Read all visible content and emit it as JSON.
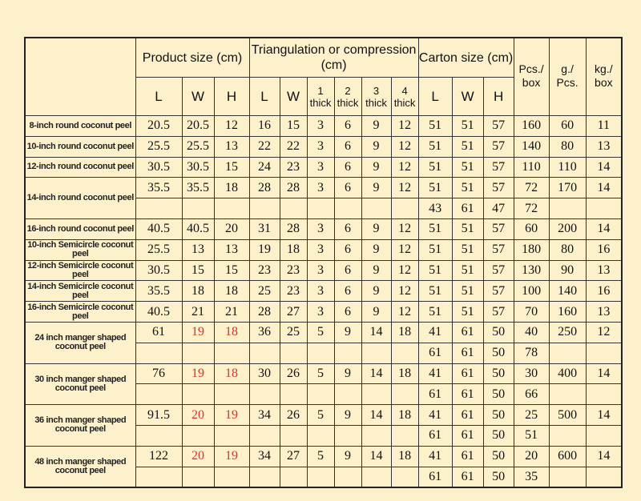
{
  "header": {
    "product": "Product size (cm)",
    "triangulation": "Triangulation or compression (cm)",
    "carton": "Carton size (cm)",
    "pcs": "Pcs./ box",
    "grams": "g./ Pcs.",
    "kg": "kg./ box",
    "sub": [
      "L",
      "W",
      "H",
      "L",
      "W",
      "1 thick",
      "2 thick",
      "3 thick",
      "4 thick",
      "L",
      "W",
      "H"
    ]
  },
  "rows": [
    {
      "name": "8-inch round coconut peel",
      "values": [
        20.5,
        20.5,
        12,
        16,
        15,
        3,
        6,
        9,
        12,
        51,
        51,
        57,
        160,
        60,
        11
      ]
    },
    {
      "name": "10-inch round coconut peel",
      "values": [
        25.5,
        25.5,
        13,
        22,
        22,
        3,
        6,
        9,
        12,
        51,
        51,
        57,
        140,
        80,
        13
      ]
    },
    {
      "name": "12-inch round coconut peel",
      "values": [
        30.5,
        30.5,
        15,
        24,
        23,
        3,
        6,
        9,
        12,
        51,
        51,
        57,
        110,
        110,
        14
      ]
    },
    {
      "name": "14-inch round coconut peel",
      "values": [
        35.5,
        35.5,
        18,
        28,
        28,
        3,
        6,
        9,
        12,
        51,
        51,
        57,
        72,
        170,
        14
      ],
      "second_row": [
        43,
        61,
        47,
        72
      ]
    },
    {
      "name": "16-inch round coconut peel",
      "values": [
        40.5,
        40.5,
        20,
        31,
        28,
        3,
        6,
        9,
        12,
        51,
        51,
        57,
        60,
        200,
        14
      ]
    },
    {
      "name": "10-inch Semicircle coconut peel",
      "values": [
        25.5,
        13,
        13,
        19,
        18,
        3,
        6,
        9,
        12,
        51,
        51,
        57,
        180,
        80,
        16
      ]
    },
    {
      "name": "12-inch Semicircle coconut peel",
      "values": [
        30.5,
        15,
        15,
        23,
        23,
        3,
        6,
        9,
        12,
        51,
        51,
        57,
        130,
        90,
        13
      ]
    },
    {
      "name": "14-inch Semicircle coconut peel",
      "values": [
        35.5,
        18,
        18,
        25,
        23,
        3,
        6,
        9,
        12,
        51,
        51,
        57,
        100,
        140,
        16
      ]
    },
    {
      "name": "16-inch Semicircle coconut peel",
      "values": [
        40.5,
        21,
        21,
        28,
        27,
        3,
        6,
        9,
        12,
        51,
        51,
        57,
        70,
        160,
        13
      ]
    },
    {
      "name": "24 inch manger shaped coconut peel",
      "values": [
        61,
        {
          "value": 19,
          "color": "#d8322e"
        },
        {
          "value": 18,
          "color": "#d8322e"
        },
        36,
        25,
        5,
        9,
        14,
        18,
        41,
        61,
        50,
        40,
        250,
        12
      ],
      "second_row": [
        61,
        61,
        50,
        78
      ]
    },
    {
      "name": "30 inch manger shaped coconut peel",
      "values": [
        76,
        {
          "value": 19,
          "color": "#d8322e"
        },
        {
          "value": 18,
          "color": "#d8322e"
        },
        30,
        26,
        5,
        9,
        14,
        18,
        41,
        61,
        50,
        30,
        400,
        14
      ],
      "second_row": [
        61,
        61,
        50,
        66
      ]
    },
    {
      "name": "36 inch manger shaped coconut peel",
      "values": [
        91.5,
        {
          "value": 20,
          "color": "#d8322e"
        },
        {
          "value": 19,
          "color": "#d8322e"
        },
        34,
        26,
        5,
        9,
        14,
        18,
        41,
        61,
        50,
        25,
        500,
        14
      ],
      "second_row": [
        61,
        61,
        50,
        51
      ]
    },
    {
      "name": "48 inch manger shaped coconut peel",
      "values": [
        122,
        {
          "value": 20,
          "color": "#d8322e"
        },
        {
          "value": 19,
          "color": "#d8322e"
        },
        34,
        27,
        5,
        9,
        14,
        18,
        41,
        61,
        50,
        20,
        600,
        14
      ],
      "second_row": [
        61,
        61,
        50,
        35
      ]
    }
  ]
}
